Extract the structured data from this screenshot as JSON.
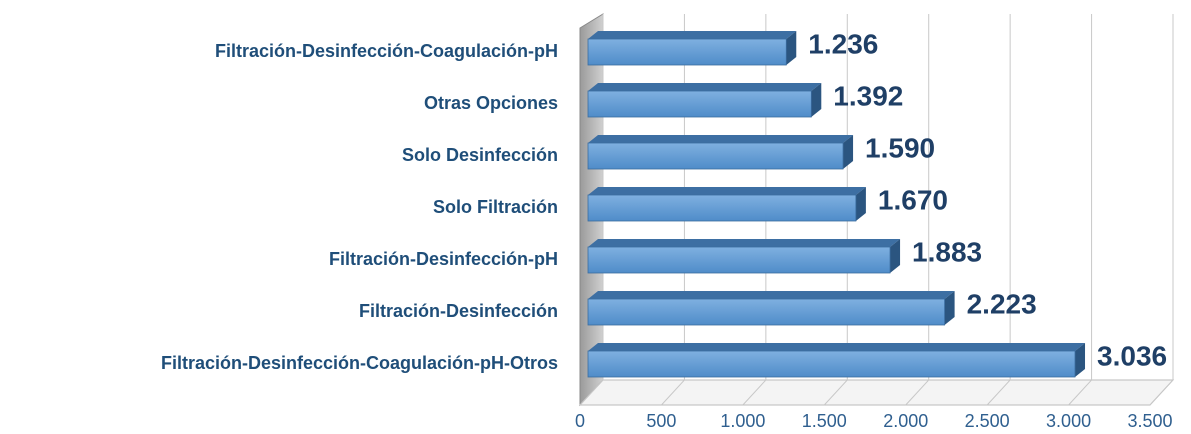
{
  "chart_data": {
    "type": "bar",
    "orientation": "horizontal",
    "three_d": true,
    "categories": [
      "Filtración-Desinfección-Coagulación-pH",
      "Otras Opciones",
      "Solo Desinfección",
      "Solo Filtración",
      "Filtración-Desinfección-pH",
      "Filtración-Desinfección",
      "Filtración-Desinfección-Coagulación-pH-Otros"
    ],
    "values": [
      1236,
      1392,
      1590,
      1670,
      1883,
      2223,
      3036
    ],
    "value_labels": [
      "1.236",
      "1.392",
      "1.590",
      "1.670",
      "1.883",
      "2.223",
      "3.036"
    ],
    "color": "#5b9bd5",
    "xlim": [
      0,
      3500
    ],
    "xticks": [
      0,
      500,
      {
        "value": 1000,
        "label": "1.000"
      },
      {
        "value": 1500,
        "label": "1.500"
      },
      {
        "value": 2000,
        "label": "2.000"
      },
      {
        "value": 2500,
        "label": "2.500"
      },
      {
        "value": 3000,
        "label": "3.000"
      },
      {
        "value": 3500,
        "label": "3.500"
      }
    ],
    "grid": true
  }
}
